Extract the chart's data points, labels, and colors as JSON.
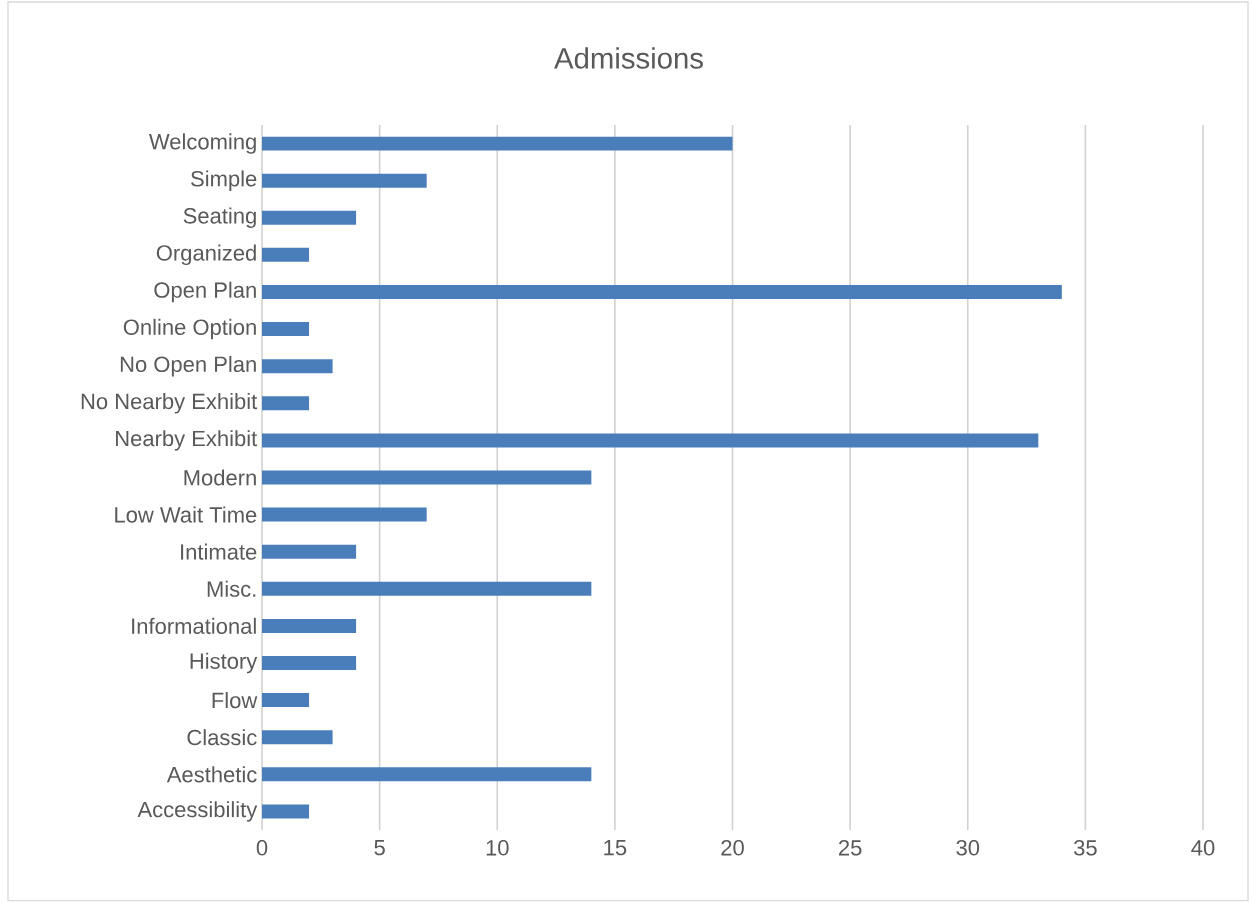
{
  "chart_data": {
    "type": "bar",
    "orientation": "horizontal",
    "title": "Admissions",
    "categories": [
      "Welcoming",
      "Simple",
      "Seating",
      "Organized",
      "Open Plan",
      "Online Option",
      "No Open Plan",
      "No Nearby Exhibit",
      "Nearby Exhibit",
      "Modern",
      "Low Wait Time",
      "Intimate",
      "Misc.",
      "Informational",
      "History",
      "Flow",
      "Classic",
      "Aesthetic",
      "Accessibility"
    ],
    "values": [
      20,
      7,
      4,
      2,
      34,
      2,
      3,
      2,
      33,
      14,
      7,
      4,
      14,
      4,
      4,
      2,
      3,
      14,
      2
    ],
    "color": "#4a7ebb",
    "xlim": [
      0,
      40
    ],
    "xticks": [
      0,
      5,
      10,
      15,
      20,
      25,
      30,
      35,
      40
    ],
    "grid": "x"
  }
}
